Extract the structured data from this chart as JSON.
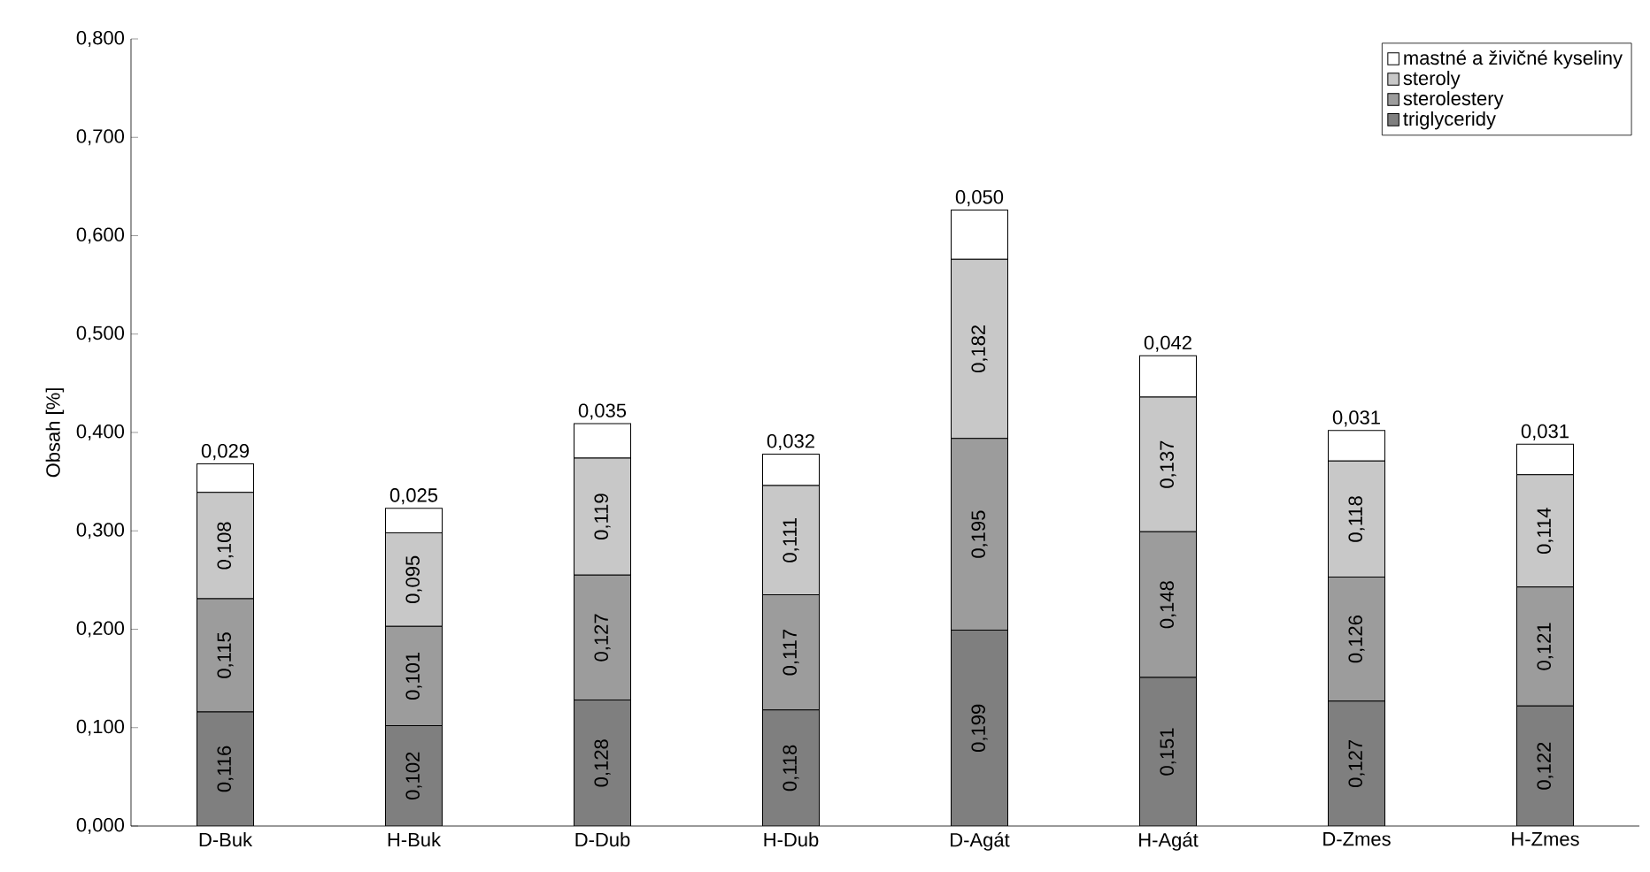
{
  "chart_data": {
    "type": "bar",
    "stacked": true,
    "ylabel": "Obsah  [%]",
    "categories": [
      "D-Buk",
      "H-Buk",
      "D-Dub",
      "H-Dub",
      "D-Agát",
      "H-Agát",
      "D-Zmes",
      "H-Zmes"
    ],
    "ylim": [
      0,
      0.8
    ],
    "yticks": [
      {
        "value": 0,
        "label": "0,000"
      },
      {
        "value": 0.1,
        "label": "0,100"
      },
      {
        "value": 0.2,
        "label": "0,200"
      },
      {
        "value": 0.3,
        "label": "0,300"
      },
      {
        "value": 0.4,
        "label": "0,400"
      },
      {
        "value": 0.5,
        "label": "0,500"
      },
      {
        "value": 0.6,
        "label": "0,600"
      },
      {
        "value": 0.7,
        "label": "0,700"
      },
      {
        "value": 0.8,
        "label": "0,800"
      }
    ],
    "legend": "top right",
    "series": [
      {
        "name": "triglyceridy",
        "color": "#7f7f7f",
        "values": [
          0.116,
          0.102,
          0.128,
          0.118,
          0.199,
          0.151,
          0.127,
          0.122
        ],
        "value_labels": [
          "0,116",
          "0,102",
          "0,128",
          "0,118",
          "0,199",
          "0,151",
          "0,127",
          "0,122"
        ]
      },
      {
        "name": "sterolestery",
        "color": "#9c9c9c",
        "values": [
          0.115,
          0.101,
          0.127,
          0.117,
          0.195,
          0.148,
          0.126,
          0.121
        ],
        "value_labels": [
          "0,115",
          "0,101",
          "0,127",
          "0,117",
          "0,195",
          "0,148",
          "0,126",
          "0,121"
        ]
      },
      {
        "name": "steroly",
        "color": "#c8c8c8",
        "values": [
          0.108,
          0.095,
          0.119,
          0.111,
          0.182,
          0.137,
          0.118,
          0.114
        ],
        "value_labels": [
          "0,108",
          "0,095",
          "0,119",
          "0,111",
          "0,182",
          "0,137",
          "0,118",
          "0,114"
        ]
      },
      {
        "name": "mastné a živičné kyseliny",
        "color": "#ffffff",
        "values": [
          0.029,
          0.025,
          0.035,
          0.032,
          0.05,
          0.042,
          0.031,
          0.031
        ],
        "value_labels": [
          "0,029",
          "0,025",
          "0,035",
          "0,032",
          "0,050",
          "0,042",
          "0,031",
          "0,031"
        ]
      }
    ]
  }
}
